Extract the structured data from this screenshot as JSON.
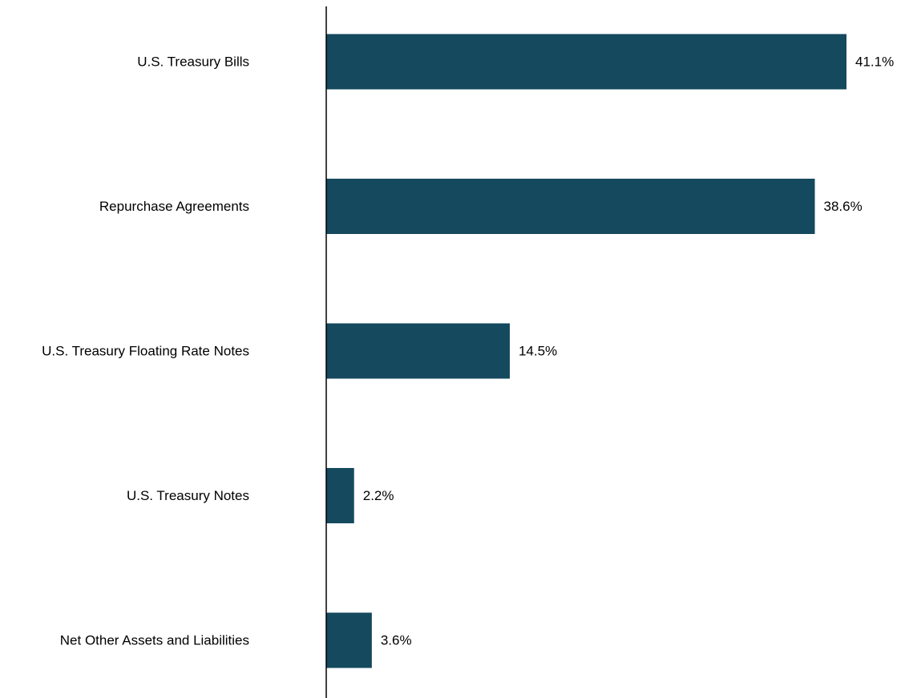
{
  "chart_data": {
    "type": "bar",
    "orientation": "horizontal",
    "categories": [
      "U.S. Treasury Bills",
      "Repurchase Agreements",
      "U.S. Treasury Floating Rate Notes",
      "U.S. Treasury Notes",
      "Net Other Assets and Liabilities"
    ],
    "values": [
      41.1,
      38.6,
      14.5,
      2.2,
      3.6
    ],
    "value_labels": [
      "41.1%",
      "38.6%",
      "14.5%",
      "2.2%",
      "3.6%"
    ],
    "unit": "%",
    "xlim": [
      0,
      41.1
    ],
    "grid": false,
    "legend": "none",
    "colors": {
      "bar": "#14495e",
      "axis": "#000000",
      "text": "#000000"
    }
  }
}
